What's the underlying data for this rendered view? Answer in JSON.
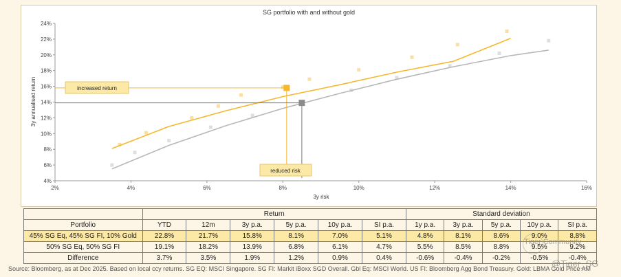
{
  "chart_data": {
    "type": "scatter",
    "title": "SG portfolio with and without gold",
    "xlabel": "3y risk",
    "ylabel": "3y annualised return",
    "xlim": [
      2,
      16
    ],
    "ylim": [
      4,
      24
    ],
    "x_ticks": [
      "2%",
      "4%",
      "6%",
      "8%",
      "10%",
      "12%",
      "14%",
      "16%"
    ],
    "y_ticks": [
      "4%",
      "6%",
      "8%",
      "10%",
      "12%",
      "14%",
      "16%",
      "18%",
      "20%",
      "22%",
      "24%"
    ],
    "series": [
      {
        "name": "With gold",
        "color": "#f5b82e",
        "points": [
          [
            3.7,
            8.6
          ],
          [
            4.4,
            10.1
          ],
          [
            5.6,
            12.0
          ],
          [
            6.3,
            13.5
          ],
          [
            6.9,
            14.9
          ],
          [
            8.0,
            15.9
          ],
          [
            8.7,
            16.9
          ],
          [
            10.0,
            18.1
          ],
          [
            11.4,
            19.7
          ],
          [
            12.6,
            21.3
          ],
          [
            13.9,
            23.0
          ]
        ],
        "trend": [
          [
            3.5,
            8.1
          ],
          [
            5.0,
            10.9
          ],
          [
            6.5,
            12.9
          ],
          [
            8.0,
            14.7
          ],
          [
            9.5,
            16.2
          ],
          [
            11.0,
            17.8
          ],
          [
            12.5,
            19.2
          ],
          [
            14.0,
            22.1
          ]
        ]
      },
      {
        "name": "Without gold",
        "color": "#b8b8b8",
        "points": [
          [
            3.5,
            6.0
          ],
          [
            4.1,
            7.6
          ],
          [
            5.0,
            9.1
          ],
          [
            6.1,
            10.8
          ],
          [
            7.2,
            12.3
          ],
          [
            8.5,
            14.0
          ],
          [
            9.8,
            15.5
          ],
          [
            11.0,
            17.1
          ],
          [
            12.4,
            18.6
          ],
          [
            13.7,
            20.2
          ],
          [
            15.0,
            21.8
          ]
        ],
        "trend": [
          [
            3.5,
            5.5
          ],
          [
            5.0,
            8.5
          ],
          [
            6.5,
            11.0
          ],
          [
            8.0,
            13.2
          ],
          [
            9.5,
            15.1
          ],
          [
            11.0,
            16.9
          ],
          [
            12.5,
            18.5
          ],
          [
            14.0,
            19.9
          ],
          [
            15.0,
            20.6
          ]
        ]
      }
    ],
    "highlights": [
      {
        "name": "45% SG Eq, 45% SG FI, 10% Gold",
        "x": 8.1,
        "y": 15.8,
        "color": "#f5b82e"
      },
      {
        "name": "50% SG Eq, 50% SG FI",
        "x": 8.5,
        "y": 13.9,
        "color": "#8c8c8c"
      }
    ],
    "annotations": [
      {
        "text": "increased return",
        "color": "#fde9a6"
      },
      {
        "text": "reduced risk",
        "color": "#fde9a6"
      }
    ]
  },
  "table": {
    "group_headers": [
      "Return",
      "Standard deviation"
    ],
    "columns": [
      "Portfolio",
      "YTD",
      "12m",
      "3y p.a.",
      "5y p.a.",
      "10y p.a.",
      "SI p.a.",
      "1y p.a.",
      "3y p.a.",
      "5y p.a.",
      "10y p.a.",
      "SI p.a."
    ],
    "rows": [
      [
        "45% SG Eq, 45% SG FI, 10% Gold",
        "22.8%",
        "21.7%",
        "15.8%",
        "8.1%",
        "7.0%",
        "5.1%",
        "4.8%",
        "8.1%",
        "8.6%",
        "9.0%",
        "8.8%"
      ],
      [
        "50% SG Eq, 50% SG FI",
        "19.1%",
        "18.2%",
        "13.9%",
        "6.8%",
        "6.1%",
        "4.7%",
        "5.5%",
        "8.5%",
        "8.8%",
        "9.5%",
        "9.2%"
      ],
      [
        "Difference",
        "3.7%",
        "3.5%",
        "1.9%",
        "1.2%",
        "0.9%",
        "0.4%",
        "-0.6%",
        "-0.4%",
        "-0.2%",
        "-0.5%",
        "-0.4%"
      ]
    ]
  },
  "source": "Source: Bloomberg, as at Dec 2025. Based on local ccy returns. SG EQ: MSCI Singapore. SG FI: Markit iBoxx SGD Overall. Gbl Eq: MSCI World. US FI: Bloomberg Agg Bond Treasury. Gold: LBMA Gold Price AM",
  "watermark": {
    "line1": "Tiger Community",
    "line2": "@Tiger_SG"
  }
}
